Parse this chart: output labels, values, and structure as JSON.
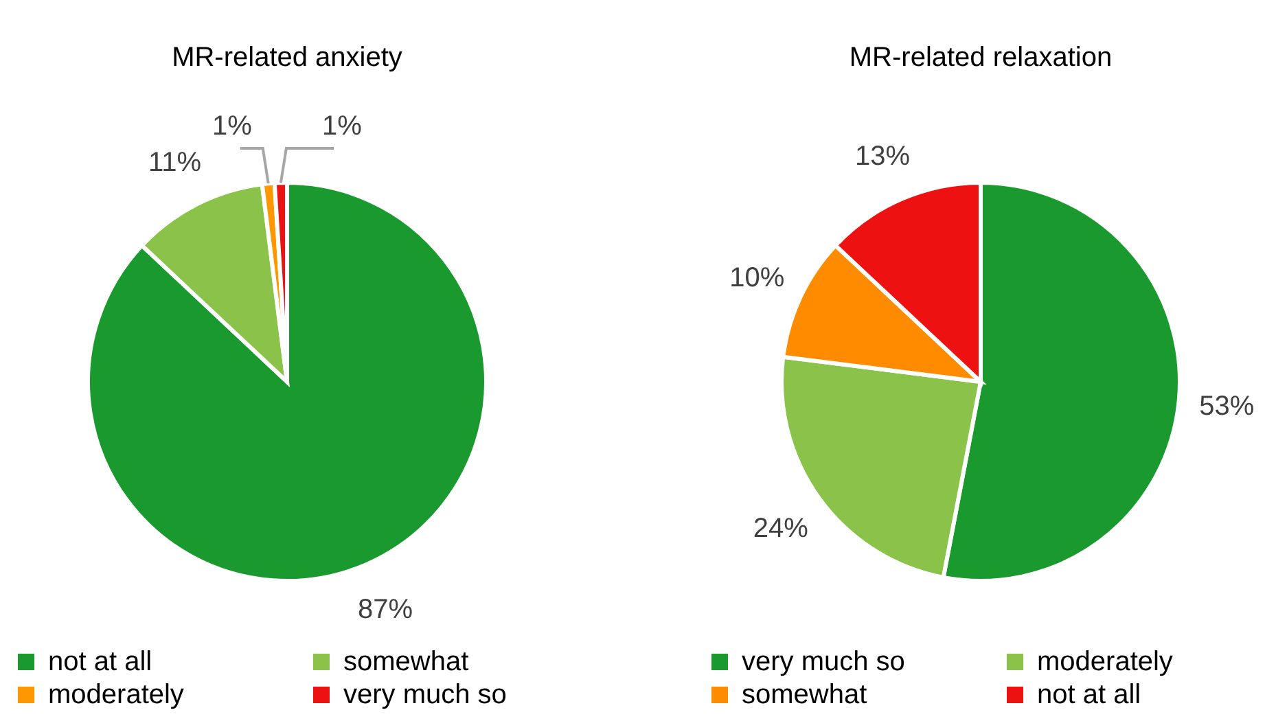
{
  "chart_data": [
    {
      "type": "pie",
      "title": "MR-related anxiety",
      "categories": [
        "not at all",
        "somewhat",
        "moderately",
        "very much so"
      ],
      "values": [
        87,
        11,
        1,
        1
      ],
      "value_labels": [
        "87%",
        "11%",
        "1%",
        "1%"
      ],
      "colors": [
        "#1a9a2e",
        "#8bc34a",
        "#ff9800",
        "#ee1111"
      ],
      "legend": "bottom"
    },
    {
      "type": "pie",
      "title": "MR-related relaxation",
      "categories": [
        "very much so",
        "moderately",
        "somewhat",
        "not at all"
      ],
      "values": [
        53,
        24,
        10,
        13
      ],
      "value_labels": [
        "53%",
        "24%",
        "10%",
        "13%"
      ],
      "colors": [
        "#1a9a2e",
        "#8bc34a",
        "#ff8c00",
        "#ee1111"
      ],
      "legend": "bottom"
    }
  ]
}
